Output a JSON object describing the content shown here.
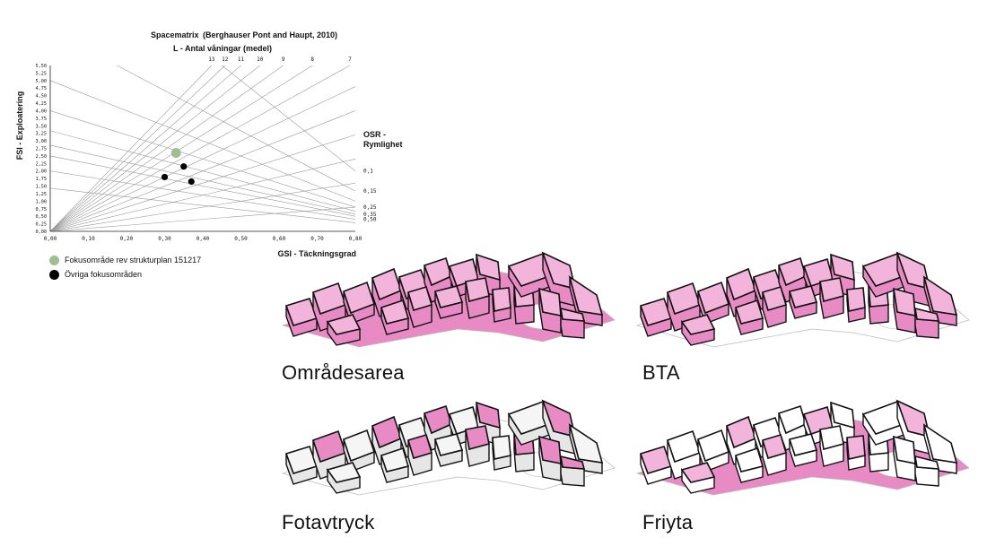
{
  "chart_data": {
    "type": "scatter",
    "title": "Spacematrix",
    "subtitle": "(Berghauser Pont and Haupt, 2010)",
    "l_label": "L - Antal våningar (medel)",
    "xlabel": "GSI - Täckningsgrad",
    "ylabel": "FSI - Exploatering",
    "osr_label_line1": "OSR -",
    "osr_label_line2": "Rymlighet",
    "xlim": [
      0,
      0.8
    ],
    "ylim": [
      0,
      5.5
    ],
    "x_ticks": [
      "0,00",
      "0,10",
      "0,20",
      "0,30",
      "0,40",
      "0,50",
      "0,60",
      "0,70",
      "0,80"
    ],
    "y_ticks": [
      "0,00",
      "0,25",
      "0,50",
      "0,75",
      "1,00",
      "1,25",
      "1,50",
      "1,75",
      "2,00",
      "2,25",
      "2,50",
      "2,75",
      "3,00",
      "3,25",
      "3,50",
      "3,75",
      "4,00",
      "4,25",
      "4,50",
      "4,75",
      "5,00",
      "5,25",
      "5,50"
    ],
    "l_lines": [
      {
        "label": "13",
        "value": 13
      },
      {
        "label": "12",
        "value": 12
      },
      {
        "label": "11",
        "value": 11
      },
      {
        "label": "10",
        "value": 10
      },
      {
        "label": "9",
        "value": 9
      },
      {
        "label": "8",
        "value": 8
      },
      {
        "label": "7",
        "value": 7
      },
      {
        "value": 6
      },
      {
        "value": 5
      },
      {
        "value": 4
      },
      {
        "value": 3
      },
      {
        "value": 2
      },
      {
        "value": 1
      }
    ],
    "osr_lines": [
      {
        "label": "0,1",
        "value": 0.1
      },
      {
        "label": "0,15",
        "value": 0.15
      },
      {
        "label": "0,25",
        "value": 0.25
      },
      {
        "label": "0,35",
        "value": 0.35
      },
      {
        "label": "0,50",
        "value": 0.5
      },
      {
        "value": 0.2
      },
      {
        "value": 0.3
      },
      {
        "value": 0.4
      },
      {
        "value": 0.7
      }
    ],
    "series": [
      {
        "name": "Fokusområde rev strukturplan 151217",
        "color": "#9fbf93",
        "points": [
          {
            "x": 0.33,
            "y": 2.6
          }
        ]
      },
      {
        "name": "Övriga fokusområden",
        "color": "#000000",
        "points": [
          {
            "x": 0.35,
            "y": 2.15
          },
          {
            "x": 0.3,
            "y": 1.8
          },
          {
            "x": 0.37,
            "y": 1.65
          }
        ]
      }
    ],
    "grid": false,
    "legend_position": "bottom-left"
  },
  "panels": [
    {
      "label": "Områdesarea"
    },
    {
      "label": "BTA"
    },
    {
      "label": "Fotavtryck"
    },
    {
      "label": "Friyta"
    }
  ],
  "colors": {
    "pink": "#e88bc4",
    "pink_light": "#f2b4da",
    "outline": "#111111",
    "grey_block": "#e6e6e6"
  }
}
